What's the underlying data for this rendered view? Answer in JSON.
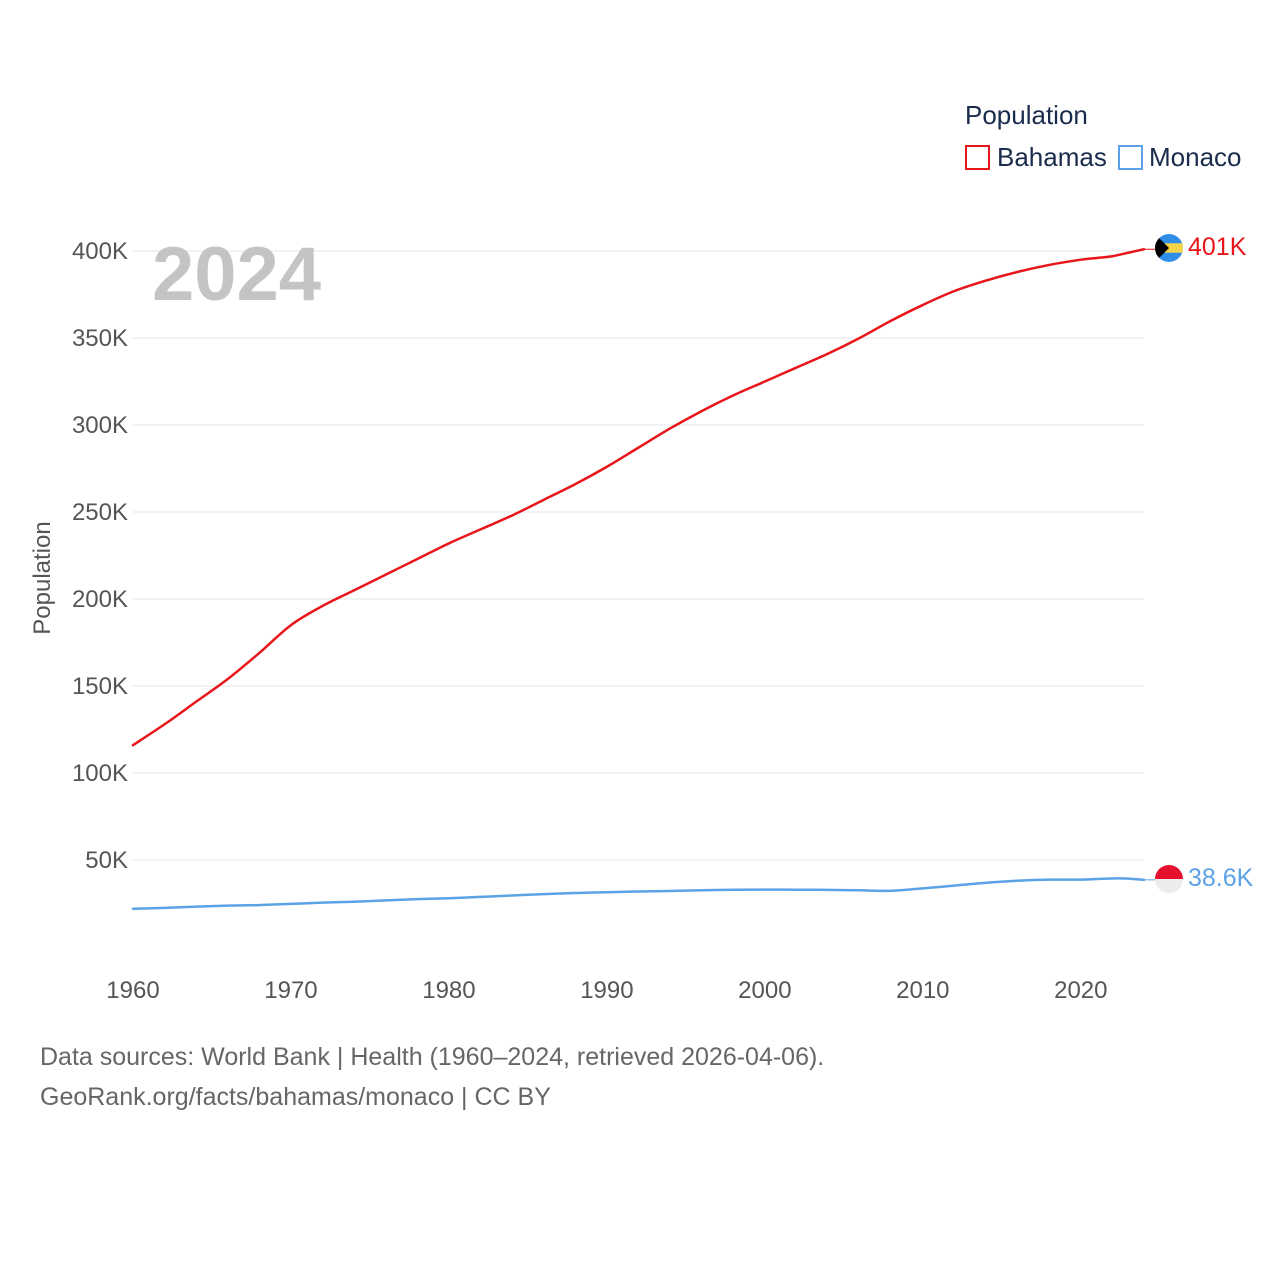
{
  "colors": {
    "bahamas": "#e8151a",
    "monaco": "#5ba3e6",
    "grid": "#e6e6e6",
    "tick": "#555555",
    "year": "#c4c4c4"
  },
  "chart_data": {
    "type": "line",
    "title": "",
    "year_label": "2024",
    "xlabel": "",
    "ylabel": "Population",
    "xlim": [
      1960,
      2024
    ],
    "ylim": [
      0,
      400000
    ],
    "x_ticks": [
      1960,
      1970,
      1980,
      1990,
      2000,
      2010,
      2020
    ],
    "x_tick_labels": [
      "1960",
      "1970",
      "1980",
      "1990",
      "2000",
      "2010",
      "2020"
    ],
    "y_ticks": [
      50000,
      100000,
      150000,
      200000,
      250000,
      300000,
      350000,
      400000
    ],
    "y_tick_labels": [
      "50K",
      "100K",
      "150K",
      "200K",
      "250K",
      "300K",
      "350K",
      "400K"
    ],
    "grid": true,
    "legend": {
      "title": "Population",
      "position": "top-right"
    },
    "x": [
      1960,
      1962,
      1964,
      1966,
      1968,
      1970,
      1972,
      1974,
      1976,
      1978,
      1980,
      1982,
      1984,
      1986,
      1988,
      1990,
      1992,
      1994,
      1996,
      1998,
      2000,
      2002,
      2004,
      2006,
      2008,
      2010,
      2012,
      2014,
      2016,
      2018,
      2020,
      2021,
      2022,
      2023,
      2024
    ],
    "series": [
      {
        "name": "Bahamas",
        "color": "#e8151a",
        "end_label": "401K",
        "values": [
          116000,
          128000,
          141000,
          154000,
          169000,
          185000,
          196000,
          205000,
          214000,
          223000,
          232000,
          240000,
          248000,
          257000,
          266000,
          276000,
          287000,
          298000,
          308000,
          317000,
          325000,
          333000,
          341000,
          350000,
          360000,
          369000,
          377000,
          383000,
          388000,
          392000,
          395000,
          396000,
          397000,
          399000,
          401000
        ]
      },
      {
        "name": "Monaco",
        "color": "#5ba3e6",
        "end_label": "38.6K",
        "values": [
          22000,
          22500,
          23200,
          23800,
          24100,
          24800,
          25500,
          26000,
          26800,
          27500,
          28000,
          28800,
          29600,
          30400,
          31000,
          31500,
          31900,
          32200,
          32600,
          32900,
          33000,
          32900,
          32800,
          32600,
          32300,
          33700,
          35300,
          36900,
          38100,
          38700,
          38700,
          39100,
          39400,
          39300,
          38600
        ]
      }
    ]
  },
  "footer": {
    "line1": "Data sources: World Bank | Health (1960–2024, retrieved 2026-04-06).",
    "line2": "GeoRank.org/facts/bahamas/monaco | CC BY"
  }
}
